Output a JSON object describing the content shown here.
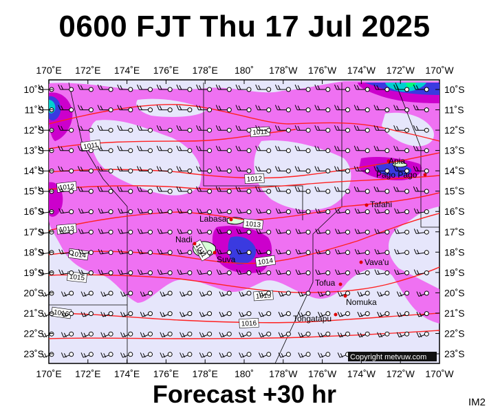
{
  "header": {
    "title": "0600 FJT Thu 17 Jul 2025"
  },
  "footer": {
    "forecast": "Forecast +30 hr",
    "product_code": "IM2"
  },
  "map": {
    "lon_ticks_top": [
      "170˚E",
      "172˚E",
      "174˚E",
      "176˚E",
      "178˚E",
      "180˚",
      "178˚W",
      "176˚W",
      "174˚W",
      "172˚W",
      "170˚W"
    ],
    "lon_ticks_bottom": [
      "170˚E",
      "172˚E",
      "174˚E",
      "176˚E",
      "178˚E",
      "180˚",
      "178˚W",
      "176˚W",
      "174˚W",
      "172˚W",
      "170˚W"
    ],
    "lat_ticks": [
      "10˚S",
      "11˚S",
      "12˚S",
      "13˚S",
      "14˚S",
      "15˚S",
      "16˚S",
      "17˚S",
      "18˚S",
      "19˚S",
      "20˚S",
      "21˚S",
      "22˚S",
      "23˚S"
    ],
    "places": [
      {
        "name": "Apia"
      },
      {
        "name": "Pago Pago"
      },
      {
        "name": "Tafahi"
      },
      {
        "name": "Labasa"
      },
      {
        "name": "Nadi"
      },
      {
        "name": "Suva"
      },
      {
        "name": "Vava'u"
      },
      {
        "name": "Tofua"
      },
      {
        "name": "Nomuka"
      },
      {
        "name": "Tongatapu"
      }
    ],
    "isobars": [
      {
        "label": "1011"
      },
      {
        "label": "1011"
      },
      {
        "label": "1012"
      },
      {
        "label": "1012"
      },
      {
        "label": "1013"
      },
      {
        "label": "1013"
      },
      {
        "label": "1014"
      },
      {
        "label": "1014"
      },
      {
        "label": "1015"
      },
      {
        "label": "1015"
      },
      {
        "label": "1016"
      },
      {
        "label": "1016"
      },
      {
        "label": "1011"
      }
    ],
    "copyright": "Copyright metvuw.com",
    "colors": {
      "background": "#e6e6fb",
      "precip_light": "#f05cf0",
      "precip_mid": "#cc00cc",
      "precip_heavy": "#3a3ae0",
      "precip_extreme": "#00d0d0",
      "isobar": "#ff0000",
      "land": "#d8ffd8"
    }
  }
}
